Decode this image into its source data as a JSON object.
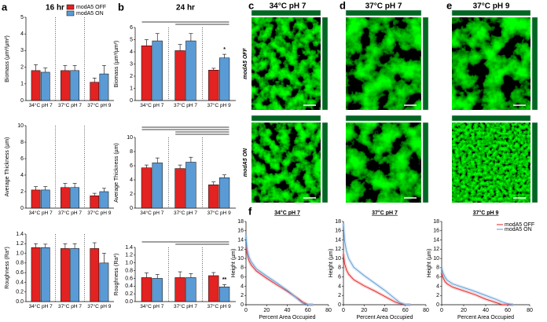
{
  "panels": [
    {
      "letter": "a",
      "title": "16 hr"
    },
    {
      "letter": "b",
      "title": "24 hr"
    },
    {
      "letter": "c",
      "title": "34°C pH 7"
    },
    {
      "letter": "d",
      "title": "37°C pH 7"
    },
    {
      "letter": "e",
      "title": "37°C pH 9"
    },
    {
      "letter": "f"
    }
  ],
  "image_rows": [
    "modA5 OFF",
    "modA5 ON"
  ],
  "chart_data": [
    {
      "type": "bar",
      "ylabel": "Biomass (µm³/µm²)",
      "categories": [
        "34°C pH 7",
        "37°C pH 7",
        "37°C pH 9"
      ],
      "ylim": [
        0,
        5
      ],
      "yticks": [
        0,
        1,
        2,
        3,
        4,
        5
      ],
      "legend": "top",
      "series": [
        {
          "name": "modA5 OFF",
          "color": "#e32222",
          "values": [
            1.8,
            1.8,
            1.1
          ],
          "errors": [
            0.35,
            0.3,
            0.25
          ]
        },
        {
          "name": "modA5 ON",
          "color": "#5b9bd5",
          "values": [
            1.7,
            1.8,
            1.6
          ],
          "errors": [
            0.25,
            0.3,
            0.5
          ]
        }
      ]
    },
    {
      "type": "bar",
      "ylabel": "Average Thickness (µm)",
      "categories": [
        "34°C pH 7",
        "37°C pH 7",
        "37°C pH 9"
      ],
      "ylim": [
        0,
        10
      ],
      "yticks": [
        0,
        2,
        4,
        6,
        8,
        10
      ],
      "series": [
        {
          "color": "#e32222",
          "values": [
            2.2,
            2.5,
            1.5
          ],
          "errors": [
            0.4,
            0.5,
            0.3
          ]
        },
        {
          "color": "#5b9bd5",
          "values": [
            2.2,
            2.5,
            2.0
          ],
          "errors": [
            0.4,
            0.5,
            0.4
          ]
        }
      ]
    },
    {
      "type": "bar",
      "ylabel": "Roughness (Ra*)",
      "categories": [
        "34°C pH 7",
        "37°C pH 7",
        "37°C pH 9"
      ],
      "ylim": [
        0,
        1.4
      ],
      "yticks": [
        {
          "value": 0,
          "label": "0.0"
        },
        0.2,
        0.4,
        0.6,
        0.8,
        {
          "value": 1,
          "label": "1.0"
        },
        1.2,
        1.4
      ],
      "series": [
        {
          "color": "#e32222",
          "values": [
            1.12,
            1.1,
            1.1
          ],
          "errors": [
            0.08,
            0.1,
            0.12
          ]
        },
        {
          "color": "#5b9bd5",
          "values": [
            1.12,
            1.1,
            0.8
          ],
          "errors": [
            0.07,
            0.1,
            0.2
          ]
        }
      ]
    },
    {
      "type": "bar",
      "ylabel": "Biomass (µm³/µm²)",
      "categories": [
        "34°C pH 7",
        "37°C pH 7",
        "37°C pH 9"
      ],
      "ylim": [
        0,
        6
      ],
      "yticks": [
        0,
        1,
        2,
        3,
        4,
        5,
        6
      ],
      "series": [
        {
          "color": "#e32222",
          "values": [
            4.5,
            4.1,
            2.5
          ],
          "errors": [
            0.5,
            0.5,
            0.15
          ]
        },
        {
          "color": "#5b9bd5",
          "values": [
            4.9,
            4.9,
            3.5
          ],
          "errors": [
            0.6,
            0.6,
            0.3
          ],
          "annotations": [
            null,
            null,
            "*"
          ]
        }
      ]
    },
    {
      "type": "bar",
      "ylabel": "Average Thickness (µm)",
      "categories": [
        "34°C pH 7",
        "37°C pH 7",
        "37°C pH 9"
      ],
      "ylim": [
        0,
        10
      ],
      "yticks": [
        0,
        2,
        4,
        6,
        8,
        10
      ],
      "series": [
        {
          "color": "#e32222",
          "values": [
            5.7,
            5.6,
            3.3
          ],
          "errors": [
            0.4,
            0.5,
            0.4
          ]
        },
        {
          "color": "#5b9bd5",
          "values": [
            6.4,
            6.5,
            4.3
          ],
          "errors": [
            0.7,
            0.7,
            0.4
          ]
        }
      ]
    },
    {
      "type": "bar",
      "ylabel": "Roughness (Ra*)",
      "categories": [
        "34°C pH 7",
        "37°C pH 7",
        "37°C pH 9"
      ],
      "ylim": [
        0,
        1.4
      ],
      "yticks": [
        {
          "value": 0,
          "label": "0.0"
        },
        0.2,
        0.4,
        0.6,
        0.8,
        {
          "value": 1,
          "label": "1.0"
        },
        1.2,
        1.4
      ],
      "series": [
        {
          "color": "#e32222",
          "values": [
            0.62,
            0.62,
            0.67
          ],
          "errors": [
            0.12,
            0.15,
            0.08
          ]
        },
        {
          "color": "#5b9bd5",
          "values": [
            0.6,
            0.62,
            0.38
          ],
          "errors": [
            0.1,
            0.1,
            0.06
          ],
          "annotations": [
            null,
            null,
            "**"
          ]
        }
      ]
    },
    {
      "type": "line",
      "title": "34°C pH 7",
      "xlabel": "Percent Area Occupied",
      "ylabel": "Height (µm)",
      "xlim": [
        0,
        80
      ],
      "xticks": [
        0,
        20,
        40,
        60,
        80
      ],
      "ylim": [
        0,
        18
      ],
      "yticks": [
        0,
        2,
        4,
        6,
        8,
        10,
        12,
        14,
        16,
        18
      ],
      "x": [
        0,
        1,
        3,
        5,
        10,
        20,
        30,
        40,
        50,
        55,
        60,
        65
      ],
      "series": [
        {
          "color": "#e32222",
          "values": [
            12.5,
            11,
            9.5,
            8.6,
            7.3,
            5.7,
            4.3,
            2.9,
            1.4,
            0.6,
            0,
            0
          ]
        },
        {
          "color": "#5b9bd5",
          "values": [
            15,
            12,
            10.3,
            9.3,
            7.8,
            6.2,
            4.7,
            3.1,
            1.3,
            0.3,
            0,
            0
          ]
        }
      ]
    },
    {
      "type": "line",
      "title": "37°C pH 7",
      "xlabel": "Percent Area Occupied",
      "ylabel": "Height (µm)",
      "xlim": [
        0,
        80
      ],
      "xticks": [
        0,
        20,
        40,
        60,
        80
      ],
      "ylim": [
        0,
        18
      ],
      "yticks": [
        0,
        2,
        4,
        6,
        8,
        10,
        12,
        14,
        16,
        18
      ],
      "x": [
        0,
        1,
        3,
        5,
        10,
        20,
        30,
        40,
        50,
        55,
        60,
        65
      ],
      "series": [
        {
          "color": "#e32222",
          "values": [
            11,
            9,
            7.5,
            6.6,
            5.4,
            4.1,
            3,
            1.8,
            0.6,
            0.2,
            0,
            0
          ]
        },
        {
          "color": "#5b9bd5",
          "values": [
            17.5,
            14,
            11.5,
            10,
            8.1,
            6.3,
            4.7,
            3.1,
            1.3,
            0.4,
            0,
            0
          ]
        }
      ]
    },
    {
      "type": "line",
      "title": "37°C pH 9",
      "xlabel": "Percent Area Occupied",
      "ylabel": "Height (µm)",
      "xlim": [
        0,
        80
      ],
      "xticks": [
        0,
        20,
        40,
        60,
        80
      ],
      "ylim": [
        0,
        18
      ],
      "yticks": [
        0,
        2,
        4,
        6,
        8,
        10,
        12,
        14,
        16,
        18
      ],
      "legend": "upper right",
      "x": [
        0,
        1,
        3,
        5,
        10,
        20,
        30,
        40,
        50,
        55,
        60,
        65
      ],
      "series": [
        {
          "name": "modA5 OFF",
          "color": "#e32222",
          "values": [
            7,
            6,
            5,
            4.5,
            3.8,
            3,
            2.2,
            1.2,
            0.4,
            0,
            0,
            0
          ]
        },
        {
          "name": "modA5 ON",
          "color": "#5b9bd5",
          "values": [
            8,
            7,
            6,
            5.3,
            4.5,
            3.7,
            2.9,
            2,
            1.1,
            0.6,
            0.2,
            0
          ]
        }
      ]
    }
  ]
}
